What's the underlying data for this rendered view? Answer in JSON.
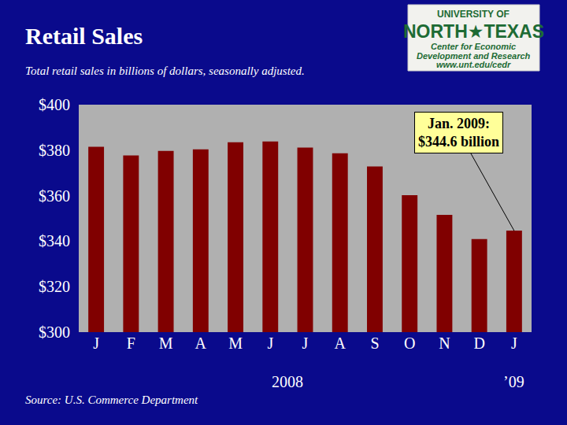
{
  "chart_data": {
    "type": "bar",
    "title": "Retail Sales",
    "subtitle": "Total retail sales in billions of dollars, seasonally adjusted.",
    "categories": [
      "J",
      "F",
      "M",
      "A",
      "M",
      "J",
      "J",
      "A",
      "S",
      "O",
      "N",
      "D",
      "J"
    ],
    "values": [
      381.5,
      377.7,
      379.7,
      380.4,
      383.5,
      383.8,
      381.1,
      378.6,
      372.8,
      360.2,
      351.6,
      340.9,
      344.6
    ],
    "color": "#800000",
    "ylim": [
      300,
      400
    ],
    "yticks": [
      {
        "value": 300,
        "label": "$300"
      },
      {
        "value": 320,
        "label": "$320"
      },
      {
        "value": 340,
        "label": "$340"
      },
      {
        "value": 360,
        "label": "$360"
      },
      {
        "value": 380,
        "label": "$380"
      },
      {
        "value": 400,
        "label": "$400"
      }
    ],
    "grid": false,
    "annotations": [
      {
        "text": "2008"
      },
      {
        "text": "’09"
      },
      {
        "text": [
          "Jan. 2009:",
          "$344.6 billion"
        ]
      }
    ],
    "source": "Source: U.S. Commerce Department",
    "logo": [
      "UNIVERSITY OF",
      "NORTH★TEXAS",
      "Center for Economic",
      "Development and Research",
      "www.unt.edu/cedr"
    ]
  }
}
